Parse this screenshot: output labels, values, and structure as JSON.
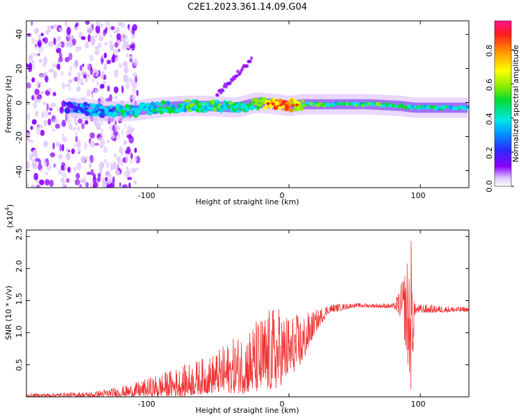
{
  "chart_data": [
    {
      "type": "heatmap",
      "title": "C2E1.2023.361.14.09.G04",
      "xlabel": "Height of straight line (km)",
      "ylabel": "Frequency (Hz)",
      "xlim": [
        -200,
        137
      ],
      "ylim": [
        -50,
        48
      ],
      "xticks": [
        "-100",
        "0",
        "100"
      ],
      "yticks": [
        "40",
        "20",
        "0",
        "-20",
        "-40"
      ],
      "colorbar": {
        "label": "Normalized spectral amplitude",
        "range": [
          0,
          0.97
        ],
        "ticks": [
          "0.0",
          "0.2",
          "0.4",
          "0.6",
          "0.8"
        ]
      },
      "ridge": [
        {
          "x": -165,
          "f": -3,
          "a": 0.3
        },
        {
          "x": -140,
          "f": -5,
          "a": 0.4
        },
        {
          "x": -120,
          "f": -5,
          "a": 0.45
        },
        {
          "x": -100,
          "f": -3,
          "a": 0.45
        },
        {
          "x": -80,
          "f": -2,
          "a": 0.5
        },
        {
          "x": -60,
          "f": -2,
          "a": 0.5
        },
        {
          "x": -40,
          "f": -3,
          "a": 0.5
        },
        {
          "x": -25,
          "f": 0,
          "a": 0.55
        },
        {
          "x": -10,
          "f": -1,
          "a": 0.85
        },
        {
          "x": 0,
          "f": -2,
          "a": 0.85
        },
        {
          "x": 10,
          "f": -1,
          "a": 0.6
        },
        {
          "x": 30,
          "f": -1,
          "a": 0.5
        },
        {
          "x": 60,
          "f": -1,
          "a": 0.5
        },
        {
          "x": 85,
          "f": -2,
          "a": 0.55
        },
        {
          "x": 95,
          "f": -3,
          "a": 0.45
        },
        {
          "x": 137,
          "f": -3,
          "a": 0.45
        }
      ],
      "upper_branch": [
        {
          "x": -55,
          "f": 5
        },
        {
          "x": -45,
          "f": 12
        },
        {
          "x": -35,
          "f": 20
        },
        {
          "x": -28,
          "f": 26
        }
      ]
    },
    {
      "type": "line",
      "title": "",
      "xlabel": "Height of straight line (km)",
      "ylabel": "SNR (10 * v/v)",
      "multiplier": "(x10",
      "multiplier_exp": "4",
      "xlim": [
        -200,
        137
      ],
      "ylim": [
        0,
        2.6
      ],
      "xticks": [
        "-100",
        "0",
        "100"
      ],
      "yticks": [
        "0.5",
        "1.0",
        "1.5",
        "2.0",
        "2.5"
      ],
      "series": [
        {
          "name": "SNR",
          "color": "#ee3333",
          "envelope": [
            {
              "x": -200,
              "lo": 0.0,
              "hi": 0.05
            },
            {
              "x": -150,
              "lo": 0.0,
              "hi": 0.08
            },
            {
              "x": -120,
              "lo": 0.0,
              "hi": 0.2
            },
            {
              "x": -100,
              "lo": 0.0,
              "hi": 0.35
            },
            {
              "x": -80,
              "lo": 0.0,
              "hi": 0.5
            },
            {
              "x": -60,
              "lo": 0.05,
              "hi": 0.65
            },
            {
              "x": -40,
              "lo": 0.05,
              "hi": 0.95
            },
            {
              "x": -20,
              "lo": 0.05,
              "hi": 1.3
            },
            {
              "x": -10,
              "lo": 0.1,
              "hi": 1.45
            },
            {
              "x": 0,
              "lo": 0.3,
              "hi": 1.3
            },
            {
              "x": 10,
              "lo": 0.5,
              "hi": 1.3
            },
            {
              "x": 20,
              "lo": 1.0,
              "hi": 1.35
            },
            {
              "x": 30,
              "lo": 1.3,
              "hi": 1.45
            },
            {
              "x": 50,
              "lo": 1.4,
              "hi": 1.46
            },
            {
              "x": 80,
              "lo": 1.38,
              "hi": 1.46
            },
            {
              "x": 86,
              "lo": 1.2,
              "hi": 1.8
            },
            {
              "x": 93,
              "lo": 0.05,
              "hi": 2.55
            },
            {
              "x": 96,
              "lo": 1.3,
              "hi": 1.45
            },
            {
              "x": 137,
              "lo": 1.33,
              "hi": 1.4
            }
          ]
        }
      ]
    }
  ]
}
